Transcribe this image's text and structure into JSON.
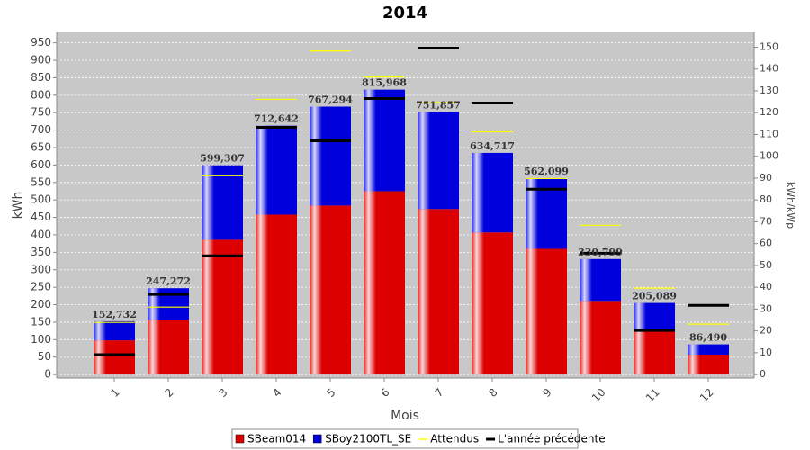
{
  "chart_data": {
    "type": "stacked_bar",
    "title": "2014",
    "x_label": "Mois",
    "y_label": "kWh",
    "y2_label": "kWh/kWp",
    "categories": [
      "1",
      "2",
      "3",
      "4",
      "5",
      "6",
      "7",
      "8",
      "9",
      "10",
      "11",
      "12"
    ],
    "series": [
      {
        "name": "SBeam014",
        "color": "#dd0000",
        "values": [
          98,
          157,
          386,
          458,
          484,
          525,
          474,
          407,
          360,
          211,
          128,
          57
        ]
      },
      {
        "name": "SBoy2100TL_SE",
        "color": "#0000dd",
        "values": [
          54.732,
          90.272,
          213.307,
          254.642,
          283.294,
          290.968,
          277.857,
          227.717,
          202.099,
          119.799,
          77.089,
          29.49
        ]
      },
      {
        "name": "Attendus",
        "color": "#ffff00",
        "axis": "y2",
        "kind": "marker",
        "values": [
          23.9,
          30.9,
          91.1,
          126.1,
          148.3,
          136.3,
          124.7,
          111.2,
          89.8,
          68.4,
          39.6,
          23.1
        ]
      },
      {
        "name": "L'année précédente",
        "color": "#000000",
        "axis": "y2",
        "kind": "marker",
        "values": [
          9.1,
          36.7,
          54.4,
          113.3,
          107.1,
          126.5,
          149.6,
          124.4,
          84.9,
          55.6,
          20.2,
          31.7
        ]
      }
    ],
    "totals": {
      "values": [
        152.732,
        247.272,
        599.307,
        712.642,
        767.294,
        815.968,
        751.857,
        634.717,
        562.099,
        330.799,
        205.089,
        86.49
      ],
      "value_labels": [
        "152,732",
        "247,272",
        "599,307",
        "712,642",
        "767,294",
        "815,968",
        "751,857",
        "634,717",
        "562,099",
        "330,799",
        "205,089",
        "86,490"
      ]
    },
    "ylim": [
      -10,
      980
    ],
    "yticks": [
      0,
      50,
      100,
      150,
      200,
      250,
      300,
      350,
      400,
      450,
      500,
      550,
      600,
      650,
      700,
      750,
      800,
      850,
      900,
      950
    ],
    "y2lim": [
      -1.6,
      156.8
    ],
    "y2ticks": [
      0,
      10,
      20,
      30,
      40,
      50,
      60,
      70,
      80,
      90,
      100,
      110,
      120,
      130,
      140,
      150
    ],
    "grid": true,
    "legend": "bottom"
  }
}
